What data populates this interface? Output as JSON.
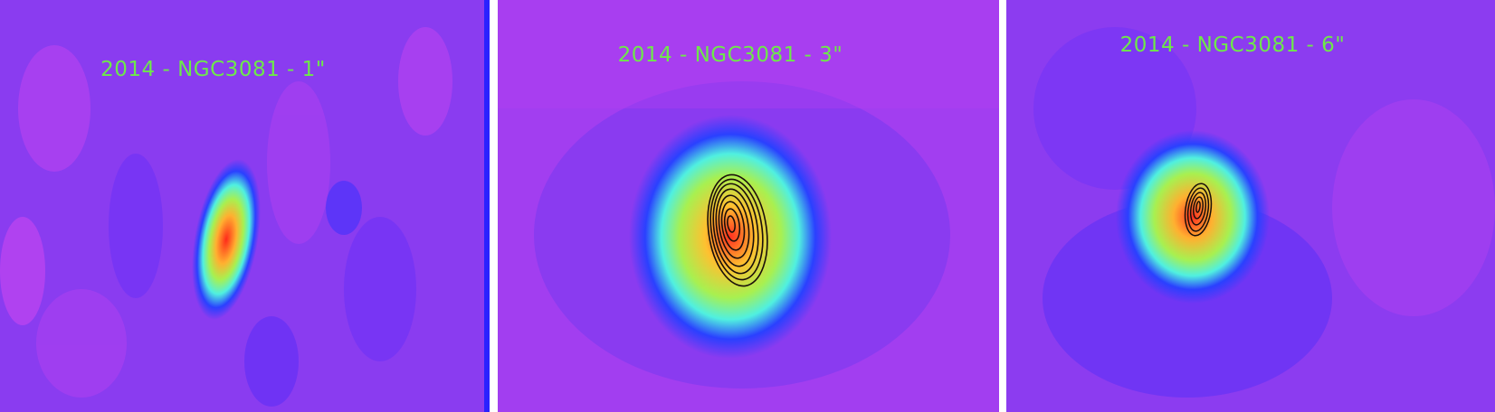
{
  "colors": {
    "background": "#8a3cf0",
    "label": "#6ee84a",
    "contour": "#1a0f0a",
    "separator": "#ffffff"
  },
  "panels": [
    {
      "label": "2014 - NGC3081 - 1\""
    },
    {
      "label": "2014 - NGC3081 - 3\""
    },
    {
      "label": "2014 - NGC3081 - 6\""
    }
  ]
}
